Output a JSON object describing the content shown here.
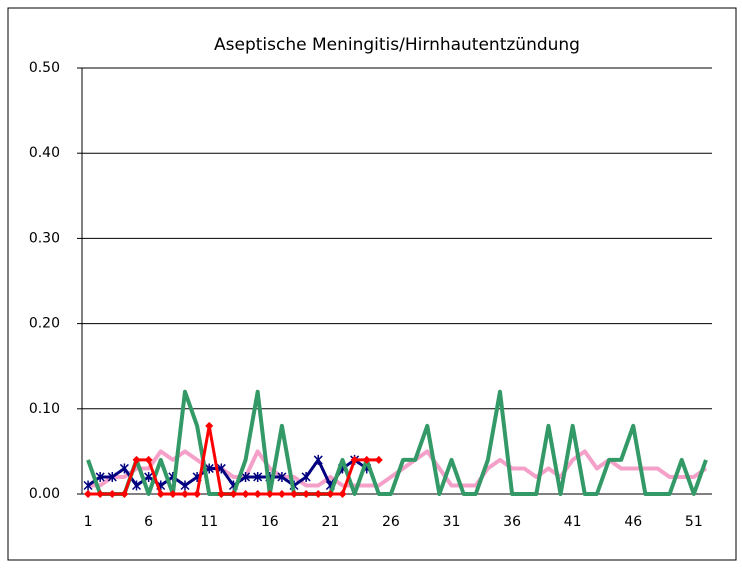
{
  "chart_data": {
    "type": "line",
    "title": "Aseptische Meningitis/Hirnhautentzündung",
    "categories": [
      1,
      null,
      null,
      null,
      null,
      6,
      null,
      null,
      null,
      null,
      11,
      null,
      null,
      null,
      null,
      16,
      null,
      null,
      null,
      null,
      21,
      null,
      null,
      null,
      null,
      26,
      null,
      null,
      null,
      null,
      31,
      null,
      null,
      null,
      null,
      36,
      null,
      null,
      null,
      null,
      41,
      null,
      null,
      null,
      null,
      46,
      null,
      null,
      null,
      null,
      51,
      null
    ],
    "ylim": [
      0,
      0.5
    ],
    "yticks": [
      {
        "value": 0,
        "label": "0.00"
      },
      {
        "value": 0.1,
        "label": "0.10"
      },
      {
        "value": 0.2,
        "label": "0.20"
      },
      {
        "value": 0.3,
        "label": "0.30"
      },
      {
        "value": 0.4,
        "label": "0.40"
      },
      {
        "value": 0.5,
        "label": "0.50"
      }
    ],
    "grid": true,
    "series": [
      {
        "color": "#f4a0c8",
        "marker": "none",
        "values": [
          0.01,
          0.01,
          0.02,
          0.02,
          0.03,
          0.03,
          0.05,
          0.04,
          0.05,
          0.04,
          0.03,
          0.03,
          0.02,
          0.02,
          0.05,
          0.03,
          0.02,
          0.02,
          0.01,
          0.01,
          0.02,
          0.01,
          0.01,
          0.01,
          0.01,
          0.02,
          0.03,
          0.04,
          0.05,
          0.03,
          0.01,
          0.01,
          0.01,
          0.03,
          0.04,
          0.03,
          0.03,
          0.02,
          0.03,
          0.02,
          0.04,
          0.05,
          0.03,
          0.04,
          0.03,
          0.03,
          0.03,
          0.03,
          0.02,
          0.02,
          0.02,
          0.03
        ]
      },
      {
        "color": "#000080",
        "marker": "star",
        "values": [
          0.01,
          0.02,
          0.02,
          0.03,
          0.01,
          0.02,
          0.01,
          0.02,
          0.01,
          0.02,
          0.03,
          0.03,
          0.01,
          0.02,
          0.02,
          0.02,
          0.02,
          0.01,
          0.02,
          0.04,
          0.01,
          0.03,
          0.04,
          0.03,
          null,
          null,
          null,
          null,
          null,
          null,
          null,
          null,
          null,
          null,
          null,
          null,
          null,
          null,
          null,
          null,
          null,
          null,
          null,
          null,
          null,
          null,
          null,
          null,
          null,
          null,
          null,
          null
        ]
      },
      {
        "color": "#339966",
        "marker": "none",
        "values": [
          0.04,
          0,
          0,
          0,
          0.04,
          0,
          0.04,
          0,
          0.12,
          0.08,
          0,
          0,
          0,
          0.04,
          0.12,
          0,
          0.08,
          0,
          0,
          0,
          0,
          0.04,
          0,
          0.04,
          0,
          0,
          0.04,
          0.04,
          0.08,
          0,
          0.04,
          0,
          0,
          0.04,
          0.12,
          0,
          0,
          0,
          0.08,
          0,
          0.08,
          0,
          0,
          0.04,
          0.04,
          0.08,
          0,
          0,
          0,
          0.04,
          0,
          0.04
        ]
      },
      {
        "color": "#ff0000",
        "marker": "diamond",
        "values": [
          0,
          0,
          0,
          0,
          0.04,
          0.04,
          0,
          0,
          0,
          0,
          0.08,
          0,
          0,
          0,
          0,
          0,
          0,
          0,
          0,
          0,
          0,
          0,
          0.04,
          0.04,
          0.04,
          null,
          null,
          null,
          null,
          null,
          null,
          null,
          null,
          null,
          null,
          null,
          null,
          null,
          null,
          null,
          null,
          null,
          null,
          null,
          null,
          null,
          null,
          null,
          null,
          null,
          null,
          null
        ]
      }
    ]
  }
}
